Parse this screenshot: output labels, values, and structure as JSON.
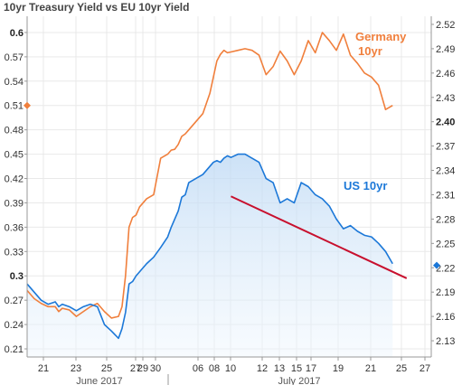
{
  "chart_data": {
    "type": "line",
    "title": "10yr Treasury Yield vs EU 10yr Yield",
    "x_tick_labels": [
      "21",
      "23",
      "25",
      "27",
      "29",
      "30",
      "06",
      "08",
      "10",
      "12",
      "13",
      "15",
      "17",
      "19",
      "21",
      "25",
      "27"
    ],
    "month_labels": [
      "June 2017",
      "July 2017"
    ],
    "left_axis": {
      "ylim": [
        0.2,
        0.62
      ],
      "ticks": [
        "0.21",
        "0.24",
        "0.27",
        "0.3",
        "0.33",
        "0.36",
        "0.39",
        "0.42",
        "0.45",
        "0.48",
        "0.51",
        "0.54",
        "0.57",
        "0.6"
      ],
      "bold_ticks": [
        "0.3",
        "0.6"
      ]
    },
    "right_axis": {
      "ylim": [
        2.11,
        2.53
      ],
      "ticks": [
        "2.13",
        "2.16",
        "2.19",
        "2.22",
        "2.25",
        "2.28",
        "2.31",
        "2.34",
        "2.37",
        "2.40",
        "2.43",
        "2.46",
        "2.49",
        "2.52"
      ],
      "bold_ticks": [
        "2.40"
      ]
    },
    "series": [
      {
        "name": "Germany 10yr",
        "axis": "left",
        "color": "#F07F3C",
        "label_lines": [
          "Germany",
          "10yr"
        ],
        "x": [
          0,
          2,
          4,
          6,
          8,
          9,
          10,
          12,
          14,
          16,
          18,
          20,
          22,
          24,
          26,
          27,
          28,
          29,
          30,
          31,
          32,
          34,
          36,
          38,
          40,
          41,
          42,
          43,
          44,
          45,
          46,
          48,
          50,
          52,
          53,
          54,
          55,
          56,
          57,
          58,
          60,
          62,
          64,
          66,
          68,
          70,
          72,
          74,
          76,
          78,
          80,
          82,
          84,
          86,
          88,
          90,
          92,
          94,
          96,
          98,
          100,
          102,
          104
        ],
        "y": [
          0.282,
          0.272,
          0.266,
          0.262,
          0.262,
          0.256,
          0.26,
          0.258,
          0.25,
          0.256,
          0.262,
          0.266,
          0.256,
          0.248,
          0.25,
          0.262,
          0.3,
          0.36,
          0.372,
          0.375,
          0.385,
          0.395,
          0.4,
          0.445,
          0.45,
          0.455,
          0.456,
          0.462,
          0.472,
          0.475,
          0.48,
          0.49,
          0.5,
          0.525,
          0.545,
          0.565,
          0.573,
          0.578,
          0.575,
          0.576,
          0.578,
          0.58,
          0.578,
          0.572,
          0.548,
          0.558,
          0.577,
          0.565,
          0.548,
          0.565,
          0.59,
          0.575,
          0.6,
          0.59,
          0.578,
          0.598,
          0.572,
          0.562,
          0.55,
          0.545,
          0.535,
          0.505,
          0.51
        ]
      },
      {
        "name": "US 10yr",
        "axis": "right",
        "color": "#1C78D8",
        "label_lines": [
          "US 10yr"
        ],
        "x": [
          0,
          2,
          4,
          6,
          8,
          9,
          10,
          12,
          14,
          16,
          18,
          20,
          22,
          24,
          26,
          27,
          28,
          29,
          30,
          31,
          32,
          34,
          36,
          38,
          40,
          41,
          42,
          43,
          44,
          45,
          46,
          48,
          50,
          52,
          53,
          54,
          55,
          56,
          57,
          58,
          60,
          62,
          64,
          66,
          68,
          70,
          72,
          74,
          76,
          78,
          80,
          82,
          84,
          86,
          88,
          90,
          92,
          94,
          96,
          98,
          100,
          102,
          104
        ],
        "y": [
          2.2,
          2.19,
          2.18,
          2.175,
          2.178,
          2.172,
          2.175,
          2.172,
          2.167,
          2.172,
          2.175,
          2.172,
          2.15,
          2.142,
          2.133,
          2.145,
          2.165,
          2.2,
          2.203,
          2.21,
          2.215,
          2.225,
          2.233,
          2.245,
          2.258,
          2.27,
          2.28,
          2.29,
          2.307,
          2.31,
          2.325,
          2.33,
          2.335,
          2.345,
          2.35,
          2.352,
          2.35,
          2.355,
          2.358,
          2.356,
          2.36,
          2.36,
          2.355,
          2.35,
          2.33,
          2.325,
          2.3,
          2.305,
          2.3,
          2.325,
          2.32,
          2.31,
          2.305,
          2.296,
          2.28,
          2.268,
          2.272,
          2.265,
          2.26,
          2.258,
          2.25,
          2.24,
          2.225
        ]
      }
    ],
    "markers": [
      {
        "axis": "left",
        "value": 0.51,
        "color": "#F07F3C",
        "side": "left"
      },
      {
        "axis": "right",
        "value": 2.223,
        "color": "#1C78D8",
        "side": "right"
      }
    ],
    "trendline": {
      "axis": "right",
      "x": [
        58,
        108
      ],
      "y": [
        2.308,
        2.207
      ],
      "color": "#C8102E"
    }
  }
}
